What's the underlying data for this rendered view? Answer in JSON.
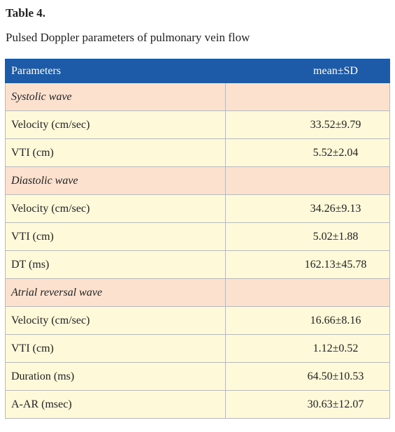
{
  "title": "Table 4.",
  "subtitle": "Pulsed Doppler parameters of pulmonary vein flow",
  "table": {
    "header": [
      "Parameters",
      "mean±SD"
    ],
    "rows": [
      [
        "Systolic wave"
      ],
      [
        "Velocity (cm/sec)",
        "33.52±9.79"
      ],
      [
        "VTI (cm)",
        "5.52±2.04"
      ],
      [
        "Diastolic wave"
      ],
      [
        "Velocity (cm/sec)",
        "34.26±9.13"
      ],
      [
        "VTI (cm)",
        "5.02±1.88"
      ],
      [
        "DT (ms)",
        "162.13±45.78"
      ],
      [
        "Atrial reversal wave"
      ],
      [
        "Velocity (cm/sec)",
        "16.66±8.16"
      ],
      [
        "VTI (cm)",
        "1.12±0.52"
      ],
      [
        "Duration (ms)",
        "64.50±10.53"
      ],
      [
        "A-AR (msec)",
        "30.63±12.07"
      ]
    ]
  }
}
